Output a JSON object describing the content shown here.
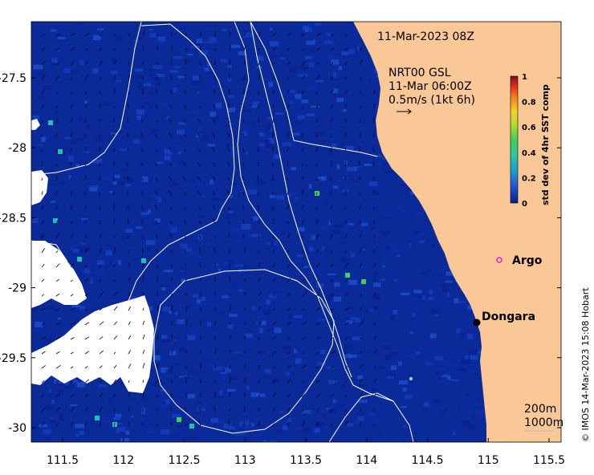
{
  "map": {
    "date_label": "11-Mar-2023 08Z",
    "current_source": "NRT00 GSL",
    "current_time": "11-Mar 06:00Z",
    "current_scale_label": "0.5m/s (1kt 6h)",
    "colors": {
      "land": "#fac896",
      "no_data": "#ffffff",
      "low": "#0a1e8c",
      "contour": "#ffffff"
    }
  },
  "x_axis": {
    "ticks": [
      {
        "value": 111.5,
        "label": "111.5"
      },
      {
        "value": 112,
        "label": "112"
      },
      {
        "value": 112.5,
        "label": "112.5"
      },
      {
        "value": 113,
        "label": "113"
      },
      {
        "value": 113.5,
        "label": "113.5"
      },
      {
        "value": 114,
        "label": "114"
      },
      {
        "value": 114.5,
        "label": "114.5"
      },
      {
        "value": 115,
        "label": "115"
      },
      {
        "value": 115.5,
        "label": "115.5"
      }
    ]
  },
  "y_axis": {
    "ticks": [
      {
        "value": -27.5,
        "label": "-27.5"
      },
      {
        "value": -28,
        "label": "-28"
      },
      {
        "value": -28.5,
        "label": "-28.5"
      },
      {
        "value": -29,
        "label": "-29"
      },
      {
        "value": -29.5,
        "label": "-29.5"
      },
      {
        "value": -30,
        "label": "-30"
      }
    ]
  },
  "colorbar": {
    "label": "std dev of 4hr SST comp",
    "ticks": [
      "1",
      "0.8",
      "0.6",
      "0.4",
      "0.2",
      "0"
    ],
    "tick_values": [
      1,
      0.8,
      0.6,
      0.4,
      0.2,
      0
    ],
    "colors": [
      "#7a1010",
      "#d82a1e",
      "#f27d1c",
      "#f4d22a",
      "#3fd15a",
      "#16b6c8",
      "#1f6fd9",
      "#0a1e8c"
    ]
  },
  "places": [
    {
      "name": "Dongara",
      "lon": 114.93,
      "lat": -29.25,
      "marker": "filled-black"
    },
    {
      "name": "Argo",
      "lon": 115.05,
      "lat": -28.83,
      "marker": "open-magenta"
    }
  ],
  "isobaths": {
    "label_200": "200m",
    "label_1000": "1000m"
  },
  "credit": "© IMOS 14-Mar-2023 15:08 Hobart"
}
